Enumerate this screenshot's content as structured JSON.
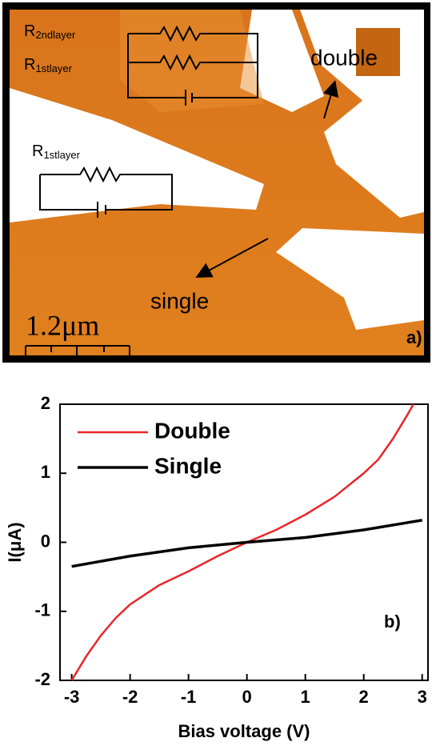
{
  "panel_a": {
    "label": "a)",
    "double": "double",
    "single": "single",
    "scale_bar": "1.2μm",
    "top_circuit": [
      {
        "main": "R",
        "sub": "2ndlayer"
      },
      {
        "main": "R",
        "sub": "1stlayer"
      }
    ],
    "bottom_circuit": {
      "main": "R",
      "sub": "1stlayer"
    }
  },
  "chart_data": {
    "type": "line",
    "panel_label": "b)",
    "x_label": "Bias voltage (V)",
    "y_label": "I(μA)",
    "xlim": [
      -3.2,
      3.1
    ],
    "ylim": [
      -2,
      2
    ],
    "xticks": [
      -3,
      -2,
      -1,
      0,
      1,
      2,
      3
    ],
    "yticks": [
      -2,
      -1,
      0,
      1,
      2
    ],
    "legend": "upper left",
    "series": [
      {
        "name": "Double",
        "color": "#e8262a",
        "x": [
          -3,
          -2.75,
          -2.5,
          -2.25,
          -2,
          -1.5,
          -1,
          -0.5,
          0,
          0.5,
          1,
          1.5,
          2,
          2.25,
          2.5,
          2.75,
          2.85
        ],
        "values": [
          -2.0,
          -1.65,
          -1.35,
          -1.1,
          -0.9,
          -0.62,
          -0.42,
          -0.2,
          0,
          0.18,
          0.4,
          0.66,
          1.0,
          1.2,
          1.5,
          1.85,
          2.0
        ]
      },
      {
        "name": "Single",
        "color": "#000000",
        "x": [
          -3,
          -2,
          -1,
          0,
          1,
          2,
          3
        ],
        "values": [
          -0.35,
          -0.2,
          -0.08,
          0,
          0.07,
          0.18,
          0.32
        ]
      }
    ]
  }
}
